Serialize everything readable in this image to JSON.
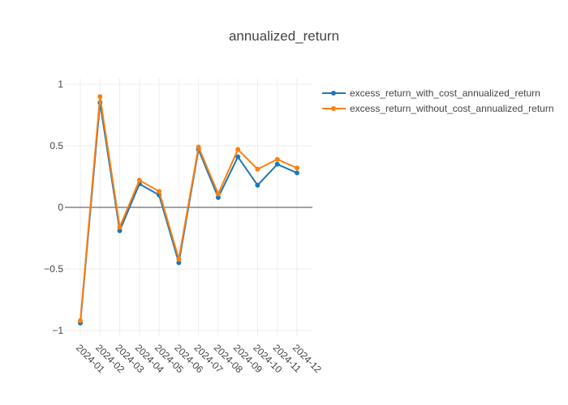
{
  "chart_data": {
    "type": "line",
    "title": "annualized_return",
    "xlabel": "",
    "ylabel": "",
    "categories": [
      "2024-01",
      "2024-02",
      "2024-03",
      "2024-04",
      "2024-05",
      "2024-06",
      "2024-07",
      "2024-08",
      "2024-09",
      "2024-10",
      "2024-11",
      "2024-12"
    ],
    "ylim": [
      -1.05,
      1.05
    ],
    "yticks": [
      1,
      0.5,
      0,
      -0.5,
      -1
    ],
    "ytick_labels": [
      "1",
      "0.5",
      "0",
      "−0.5",
      "−1"
    ],
    "grid": true,
    "legend_position": "top-right",
    "series": [
      {
        "name": "excess_return_with_cost_annualized_return",
        "color": "#1f77b4",
        "values": [
          -0.94,
          0.85,
          -0.19,
          0.19,
          0.1,
          -0.45,
          0.47,
          0.08,
          0.41,
          0.18,
          0.35,
          0.28
        ]
      },
      {
        "name": "excess_return_without_cost_annualized_return",
        "color": "#ff7f0e",
        "values": [
          -0.92,
          0.9,
          -0.16,
          0.22,
          0.13,
          -0.42,
          0.49,
          0.11,
          0.47,
          0.31,
          0.39,
          0.32
        ]
      }
    ]
  }
}
